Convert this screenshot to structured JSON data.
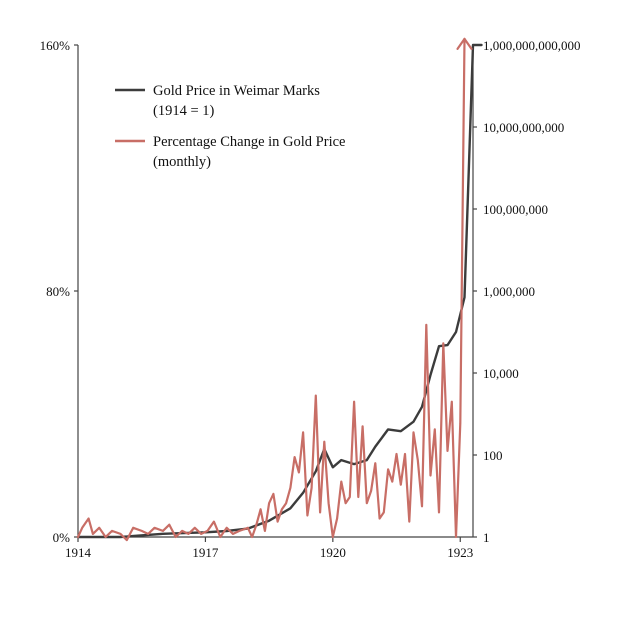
{
  "chart_data": {
    "type": "line",
    "title": "",
    "xlabel": "",
    "x_ticks": [
      "1914",
      "1917",
      "1920",
      "1923"
    ],
    "y_left": {
      "label": "",
      "ticks": [
        "0%",
        "80%",
        "160%"
      ],
      "range": [
        0,
        160
      ],
      "unit": "%"
    },
    "y_right": {
      "label": "",
      "scale": "log",
      "ticks": [
        "1",
        "100",
        "10,000",
        "1,000,000",
        "100,000,000",
        "10,000,000,000",
        "1,000,000,000,000"
      ],
      "range": [
        1,
        1000000000000
      ]
    },
    "legend": {
      "placement": "top-left",
      "entries": [
        {
          "line1": "Gold Price in Weimar Marks",
          "line2": "(1914 = 1)",
          "color": "#3c3c3c"
        },
        {
          "line1": "Percentage Change in Gold Price",
          "line2": "(monthly)",
          "color": "#c86e66"
        }
      ]
    },
    "series": [
      {
        "name": "Gold Price in Weimar Marks (1914 = 1)",
        "axis": "right",
        "color": "#3c3c3c",
        "x": [
          1914.0,
          1915.0,
          1916.0,
          1917.0,
          1917.5,
          1918.0,
          1918.5,
          1919.0,
          1919.3,
          1919.6,
          1919.8,
          1920.0,
          1920.2,
          1920.5,
          1920.8,
          1921.0,
          1921.3,
          1921.6,
          1921.9,
          1922.1,
          1922.3,
          1922.5,
          1922.7,
          1922.9,
          1923.1,
          1923.3,
          1923.5
        ],
        "values": [
          1,
          1,
          1.2,
          1.3,
          1.4,
          1.6,
          2.5,
          5,
          12,
          40,
          140,
          50,
          75,
          60,
          75,
          160,
          420,
          380,
          650,
          1500,
          9000,
          45000,
          48000,
          100000,
          700000,
          1000000000000,
          1000000000000
        ]
      },
      {
        "name": "Percentage Change in Gold Price (monthly)",
        "axis": "left",
        "color": "#c86e66",
        "x": [
          1914.0,
          1914.1,
          1914.25,
          1914.35,
          1914.5,
          1914.65,
          1914.8,
          1915.0,
          1915.15,
          1915.3,
          1915.5,
          1915.65,
          1915.8,
          1916.0,
          1916.15,
          1916.3,
          1916.45,
          1916.6,
          1916.75,
          1916.9,
          1917.05,
          1917.2,
          1917.35,
          1917.5,
          1917.65,
          1917.8,
          1918.0,
          1918.1,
          1918.2,
          1918.3,
          1918.4,
          1918.5,
          1918.6,
          1918.7,
          1918.8,
          1918.9,
          1919.0,
          1919.1,
          1919.2,
          1919.3,
          1919.4,
          1919.5,
          1919.6,
          1919.7,
          1919.8,
          1919.9,
          1920.0,
          1920.1,
          1920.2,
          1920.3,
          1920.4,
          1920.5,
          1920.6,
          1920.7,
          1920.8,
          1920.9,
          1921.0,
          1921.1,
          1921.2,
          1921.3,
          1921.4,
          1921.5,
          1921.6,
          1921.7,
          1921.8,
          1921.9,
          1922.0,
          1922.1,
          1922.2,
          1922.3,
          1922.4,
          1922.5,
          1922.6,
          1922.7,
          1922.8,
          1922.9,
          1923.0,
          1923.1
        ],
        "values": [
          0,
          3,
          6,
          1,
          3,
          0,
          2,
          1,
          -1,
          3,
          2,
          1,
          3,
          2,
          4,
          0,
          2,
          1,
          3,
          1,
          2,
          5,
          0,
          3,
          1,
          2,
          3,
          0,
          4,
          9,
          2,
          11,
          14,
          5,
          9,
          11,
          16,
          26,
          21,
          34,
          7,
          16,
          46,
          8,
          31,
          11,
          0,
          6,
          18,
          11,
          13,
          44,
          13,
          36,
          11,
          15,
          24,
          6,
          8,
          22,
          18,
          27,
          17,
          27,
          5,
          34,
          25,
          10,
          69,
          20,
          35,
          8,
          63,
          28,
          44,
          0,
          37,
          162
        ]
      }
    ],
    "grid": false
  }
}
